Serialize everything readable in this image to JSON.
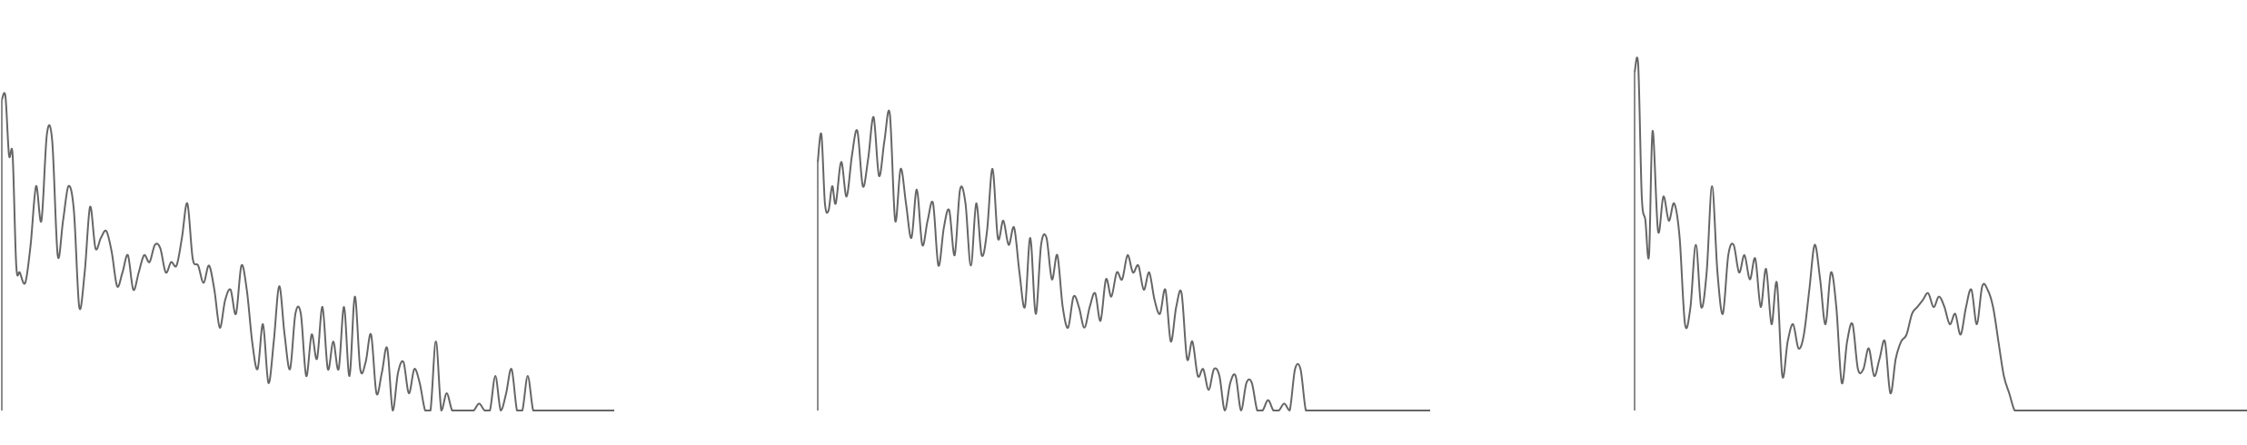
{
  "style": {
    "line_color": "#666666",
    "background": "#ffffff"
  },
  "chart_data": [
    {
      "type": "line",
      "title": "",
      "xlabel": "",
      "ylabel": "",
      "grid": false,
      "legend": "none",
      "xlim": [
        0,
        680
      ],
      "ylim": [
        0,
        1
      ],
      "series": [
        {
          "x": [
            0,
            4,
            8,
            12,
            16,
            20,
            26,
            32,
            38,
            44,
            50,
            56,
            62,
            68,
            74,
            80,
            86,
            92,
            98,
            104,
            110,
            116,
            122,
            128,
            134,
            140,
            146,
            152,
            158,
            164,
            170,
            176,
            182,
            188,
            194,
            200,
            206,
            212,
            218,
            224,
            230,
            236,
            242,
            248,
            254,
            260,
            266,
            272,
            278,
            284,
            290,
            296,
            302,
            308,
            314,
            320,
            326,
            332,
            338,
            344,
            350,
            356,
            362,
            368,
            374,
            380,
            386,
            392,
            398,
            404,
            410,
            416,
            422,
            428,
            434,
            440,
            446,
            452,
            458,
            464,
            470,
            476,
            482,
            488,
            494,
            500,
            506,
            512,
            518,
            524,
            530,
            536,
            542,
            548,
            554,
            560,
            566,
            572,
            578,
            584,
            590,
            596,
            602,
            608,
            614,
            620,
            626,
            632,
            638,
            644,
            650,
            656,
            662,
            668,
            674,
            680
          ],
          "y": [
            0.9,
            0.91,
            0.74,
            0.74,
            0.42,
            0.4,
            0.37,
            0.48,
            0.65,
            0.55,
            0.8,
            0.78,
            0.45,
            0.55,
            0.65,
            0.58,
            0.3,
            0.4,
            0.59,
            0.47,
            0.5,
            0.52,
            0.46,
            0.36,
            0.4,
            0.45,
            0.35,
            0.4,
            0.45,
            0.43,
            0.48,
            0.47,
            0.4,
            0.43,
            0.42,
            0.5,
            0.6,
            0.44,
            0.42,
            0.37,
            0.42,
            0.35,
            0.24,
            0.32,
            0.35,
            0.28,
            0.42,
            0.35,
            0.2,
            0.12,
            0.25,
            0.08,
            0.2,
            0.36,
            0.22,
            0.12,
            0.28,
            0.28,
            0.1,
            0.22,
            0.15,
            0.3,
            0.12,
            0.2,
            0.12,
            0.3,
            0.1,
            0.33,
            0.12,
            0.14,
            0.22,
            0.05,
            0.11,
            0.18,
            0.0,
            0.11,
            0.14,
            0.05,
            0.12,
            0.08,
            0.0,
            0.0,
            0.2,
            0.0,
            0.05,
            0.0,
            0.0,
            0.0,
            0.0,
            0.0,
            0.02,
            0.0,
            0.0,
            0.1,
            0.0,
            0.05,
            0.12,
            0.0,
            0.0,
            0.1,
            0.0,
            0.0,
            0.0,
            0.0,
            0.0,
            0.0,
            0.0,
            0.0,
            0.0,
            0.0,
            0.0,
            0.0,
            0.0,
            0.0,
            0.0,
            0.0
          ]
        }
      ]
    },
    {
      "type": "line",
      "title": "",
      "xlabel": "",
      "ylabel": "",
      "grid": false,
      "legend": "none",
      "xlim": [
        0,
        680
      ],
      "ylim": [
        0,
        1
      ],
      "series": [
        {
          "x": [
            0,
            4,
            8,
            12,
            16,
            20,
            26,
            32,
            38,
            44,
            50,
            56,
            62,
            68,
            74,
            80,
            86,
            92,
            98,
            104,
            110,
            116,
            122,
            128,
            134,
            140,
            146,
            152,
            158,
            164,
            170,
            176,
            182,
            188,
            194,
            200,
            206,
            212,
            218,
            224,
            230,
            236,
            242,
            248,
            254,
            260,
            266,
            272,
            278,
            284,
            290,
            296,
            302,
            308,
            314,
            320,
            326,
            332,
            338,
            344,
            350,
            356,
            362,
            368,
            374,
            380,
            386,
            392,
            398,
            404,
            410,
            416,
            422,
            428,
            434,
            440,
            446,
            452,
            458,
            464,
            470,
            476,
            482,
            488,
            494,
            500,
            506,
            512,
            518,
            524,
            530,
            536,
            542,
            548,
            554,
            560,
            566,
            572,
            578,
            584,
            590,
            596,
            602,
            608,
            614,
            620,
            626,
            632,
            638,
            644,
            650,
            656,
            662,
            668,
            674,
            680
          ],
          "y": [
            0.72,
            0.8,
            0.6,
            0.58,
            0.65,
            0.6,
            0.72,
            0.62,
            0.74,
            0.81,
            0.65,
            0.73,
            0.85,
            0.68,
            0.78,
            0.86,
            0.55,
            0.7,
            0.6,
            0.5,
            0.64,
            0.48,
            0.55,
            0.6,
            0.42,
            0.53,
            0.58,
            0.45,
            0.64,
            0.6,
            0.42,
            0.6,
            0.45,
            0.52,
            0.7,
            0.5,
            0.55,
            0.48,
            0.53,
            0.4,
            0.3,
            0.5,
            0.28,
            0.48,
            0.5,
            0.38,
            0.45,
            0.3,
            0.24,
            0.33,
            0.3,
            0.24,
            0.3,
            0.34,
            0.26,
            0.38,
            0.33,
            0.4,
            0.38,
            0.45,
            0.4,
            0.42,
            0.35,
            0.4,
            0.32,
            0.28,
            0.35,
            0.2,
            0.3,
            0.34,
            0.15,
            0.2,
            0.1,
            0.12,
            0.06,
            0.12,
            0.1,
            0.0,
            0.08,
            0.1,
            0.0,
            0.08,
            0.08,
            0.0,
            0.0,
            0.03,
            0.0,
            0.0,
            0.02,
            0.0,
            0.12,
            0.12,
            0.0,
            0.0,
            0.0,
            0.0,
            0.0,
            0.0,
            0.0,
            0.0,
            0.0,
            0.0,
            0.0,
            0.0,
            0.0,
            0.0,
            0.0,
            0.0,
            0.0,
            0.0,
            0.0,
            0.0,
            0.0,
            0.0,
            0.0,
            0.0
          ]
        }
      ]
    },
    {
      "type": "line",
      "title": "",
      "xlabel": "",
      "ylabel": "",
      "grid": false,
      "legend": "none",
      "xlim": [
        0,
        680
      ],
      "ylim": [
        0,
        1
      ],
      "series": [
        {
          "x": [
            0,
            4,
            8,
            12,
            16,
            20,
            26,
            32,
            38,
            44,
            50,
            56,
            62,
            68,
            74,
            80,
            86,
            92,
            98,
            104,
            110,
            116,
            122,
            128,
            134,
            140,
            146,
            152,
            158,
            164,
            170,
            176,
            182,
            188,
            194,
            200,
            206,
            212,
            218,
            224,
            230,
            236,
            242,
            248,
            254,
            260,
            266,
            272,
            278,
            284,
            290,
            296,
            302,
            308,
            314,
            320,
            326,
            332,
            338,
            344,
            350,
            356,
            362,
            368,
            374,
            380,
            386,
            392,
            398,
            404,
            410,
            416,
            422,
            428,
            434,
            440,
            446,
            452,
            458,
            464,
            470,
            476,
            482,
            488,
            494,
            500,
            506,
            512,
            518,
            524,
            530,
            536,
            542,
            548,
            554,
            560,
            566,
            572,
            578,
            584,
            590,
            596,
            602,
            608,
            614,
            620,
            626,
            632,
            638,
            644,
            650,
            656,
            662,
            668,
            674,
            680
          ],
          "y": [
            0.98,
            1.0,
            0.62,
            0.55,
            0.45,
            0.81,
            0.52,
            0.62,
            0.55,
            0.6,
            0.5,
            0.25,
            0.3,
            0.48,
            0.3,
            0.4,
            0.65,
            0.4,
            0.28,
            0.45,
            0.48,
            0.4,
            0.45,
            0.38,
            0.44,
            0.3,
            0.41,
            0.25,
            0.37,
            0.1,
            0.2,
            0.25,
            0.18,
            0.22,
            0.35,
            0.48,
            0.38,
            0.25,
            0.4,
            0.3,
            0.08,
            0.2,
            0.25,
            0.12,
            0.12,
            0.18,
            0.1,
            0.15,
            0.2,
            0.05,
            0.15,
            0.2,
            0.22,
            0.28,
            0.3,
            0.32,
            0.34,
            0.3,
            0.33,
            0.3,
            0.25,
            0.28,
            0.22,
            0.3,
            0.35,
            0.25,
            0.36,
            0.35,
            0.3,
            0.2,
            0.1,
            0.05,
            0.0,
            0.0,
            0.0,
            0.0,
            0.0,
            0.0,
            0.0,
            0.0,
            0.0,
            0.0,
            0.0,
            0.0,
            0.0,
            0.0,
            0.0,
            0.0,
            0.0,
            0.0,
            0.0,
            0.0,
            0.0,
            0.0,
            0.0,
            0.0,
            0.0,
            0.0,
            0.0,
            0.0,
            0.0,
            0.0,
            0.0,
            0.0,
            0.0,
            0.0,
            0.0,
            0.0,
            0.0,
            0.0,
            0.0,
            0.0,
            0.0,
            0.0,
            0.0,
            0.0
          ]
        }
      ]
    }
  ]
}
